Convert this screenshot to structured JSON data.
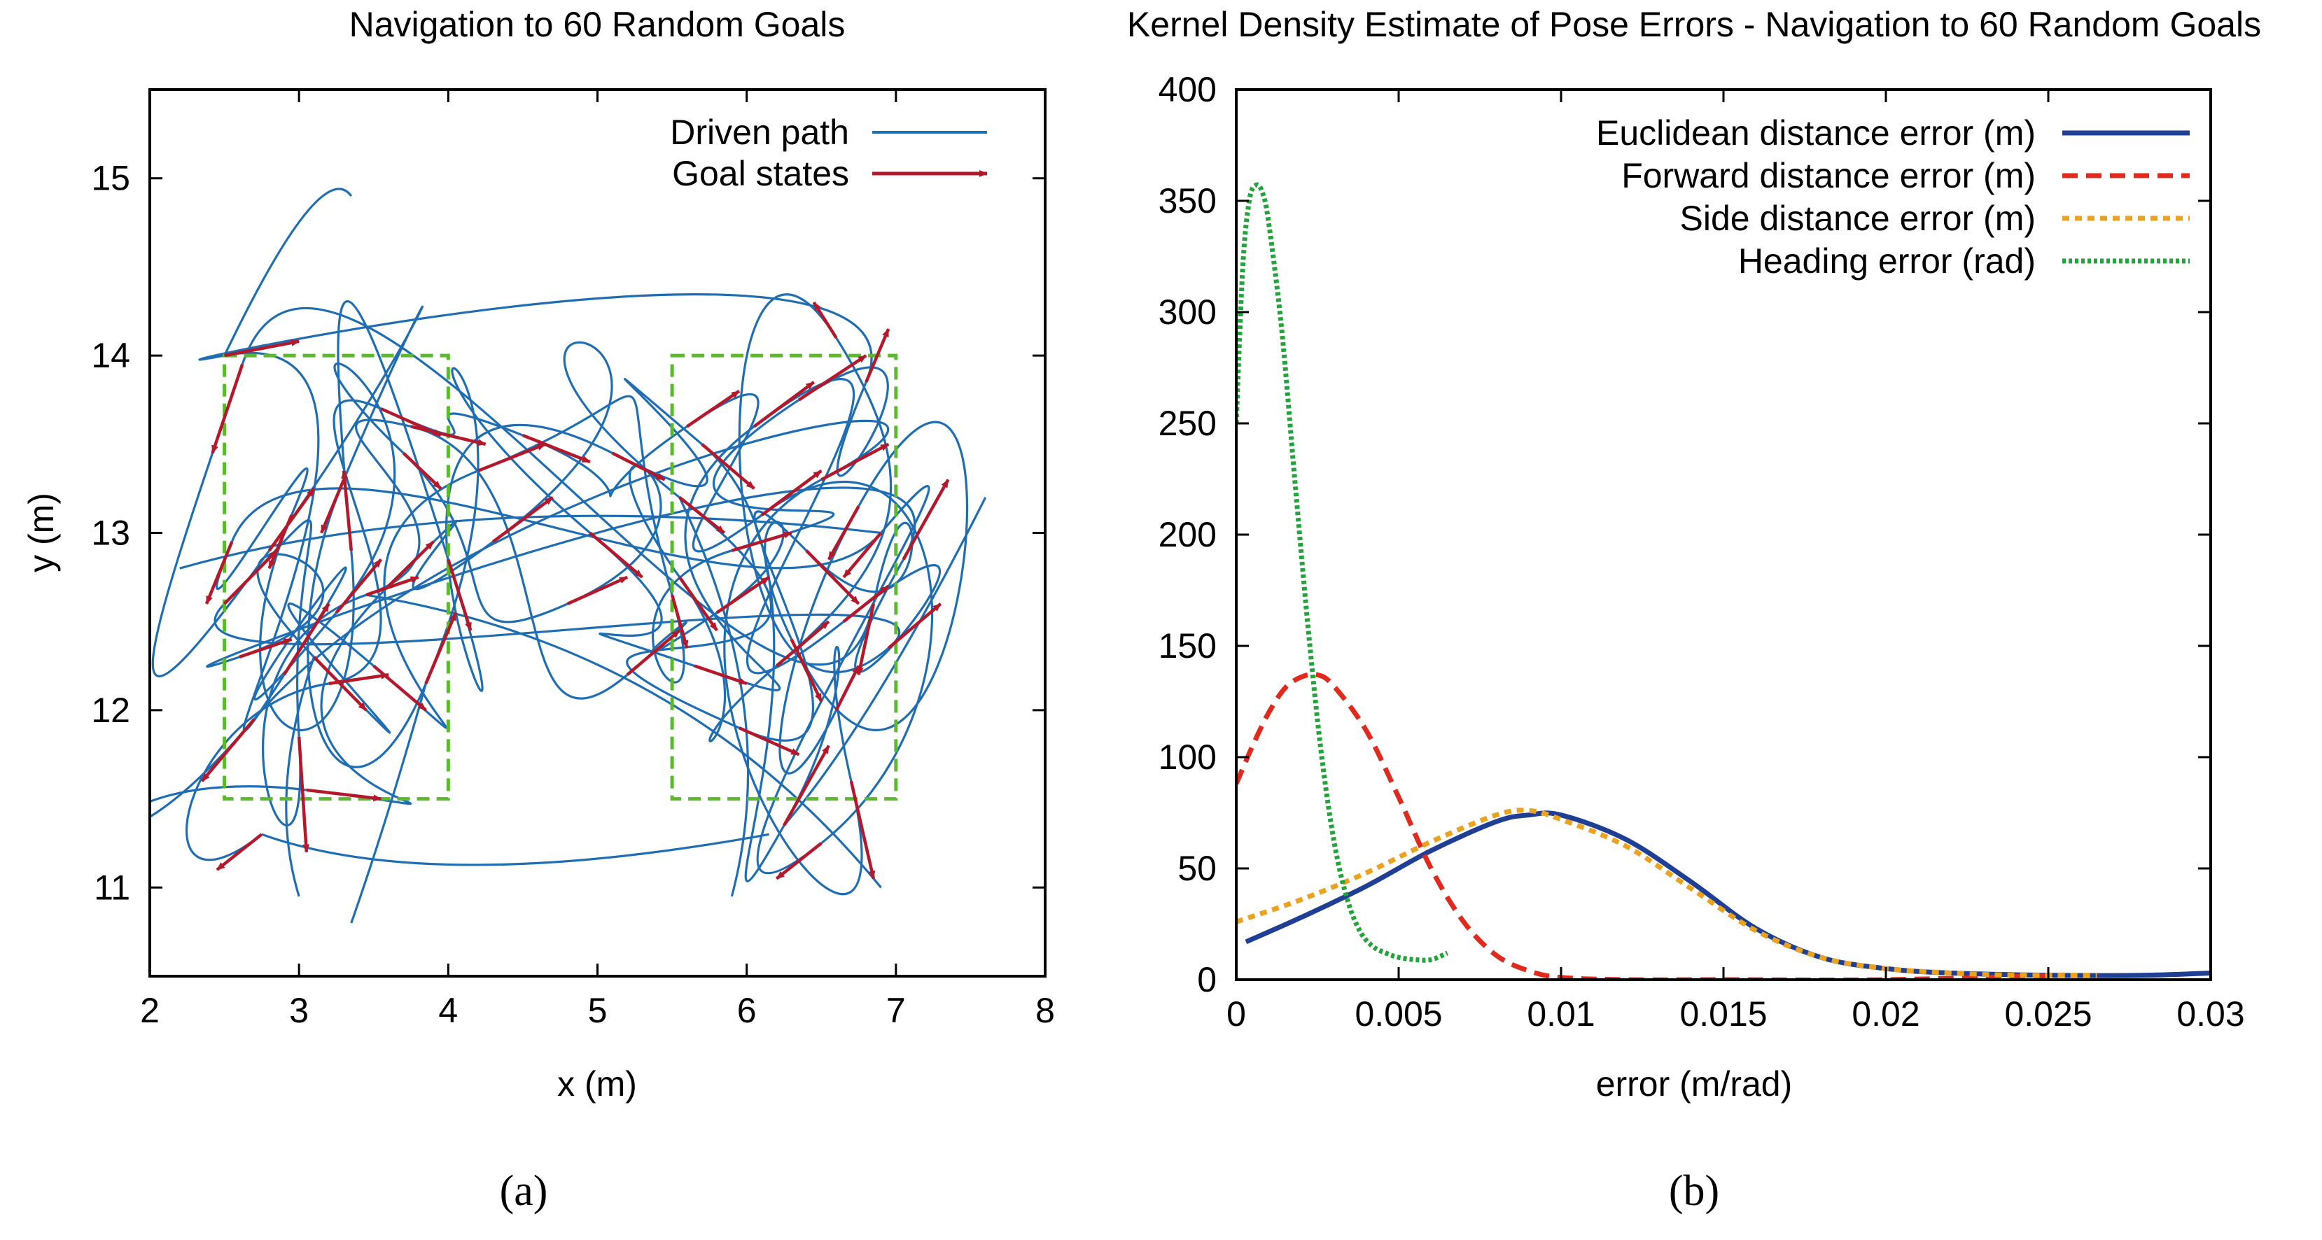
{
  "chart_data": [
    {
      "type": "line",
      "title": "Navigation to 60 Random Goals",
      "xlabel": "x (m)",
      "ylabel": "y (m)",
      "xlim": [
        2,
        8
      ],
      "ylim": [
        10.5,
        15.5
      ],
      "xticks": [
        2,
        3,
        4,
        5,
        6,
        7,
        8
      ],
      "yticks": [
        11,
        12,
        13,
        14,
        15
      ],
      "legend": [
        "Driven path",
        "Goal states"
      ],
      "legend_position": "top-right",
      "colors": {
        "path": "#1f6db3",
        "goal": "#b3182b",
        "box": "#5cb82e"
      },
      "goal_regions": [
        {
          "x0": 2.5,
          "x1": 4.0,
          "y0": 11.5,
          "y1": 14.0
        },
        {
          "x0": 5.5,
          "x1": 7.0,
          "y0": 11.5,
          "y1": 14.0
        }
      ],
      "goals": [
        [
          2.5,
          14.0,
          3.0,
          14.08
        ],
        [
          2.62,
          13.95,
          2.42,
          13.45
        ],
        [
          2.55,
          12.95,
          2.38,
          12.6
        ],
        [
          2.5,
          12.6,
          2.85,
          12.9
        ],
        [
          2.6,
          12.3,
          2.95,
          12.4
        ],
        [
          2.7,
          11.95,
          2.35,
          11.6
        ],
        [
          2.75,
          11.3,
          2.45,
          11.1
        ],
        [
          2.9,
          12.2,
          3.2,
          12.6
        ],
        [
          2.8,
          12.9,
          3.1,
          13.25
        ],
        [
          2.95,
          13.1,
          2.8,
          12.8
        ],
        [
          3.0,
          11.85,
          3.05,
          11.2
        ],
        [
          3.1,
          12.3,
          3.45,
          12.0
        ],
        [
          3.05,
          11.55,
          3.55,
          11.5
        ],
        [
          3.2,
          12.15,
          3.6,
          12.2
        ],
        [
          3.25,
          12.55,
          3.55,
          12.85
        ],
        [
          3.3,
          13.3,
          3.15,
          13.0
        ],
        [
          3.35,
          12.9,
          3.3,
          13.35
        ],
        [
          3.45,
          12.65,
          3.8,
          12.75
        ],
        [
          3.5,
          12.25,
          3.85,
          12.0
        ],
        [
          3.6,
          12.7,
          3.9,
          12.95
        ],
        [
          3.55,
          13.7,
          3.95,
          13.55
        ],
        [
          3.7,
          13.45,
          3.95,
          13.25
        ],
        [
          3.85,
          12.15,
          4.05,
          12.55
        ],
        [
          4.0,
          12.85,
          4.15,
          12.45
        ],
        [
          3.75,
          13.6,
          4.25,
          13.5
        ],
        [
          4.2,
          13.35,
          4.65,
          13.5
        ],
        [
          4.3,
          12.95,
          4.7,
          13.2
        ],
        [
          4.5,
          13.55,
          4.95,
          13.4
        ],
        [
          4.8,
          12.6,
          5.2,
          12.75
        ],
        [
          4.95,
          13.0,
          5.3,
          12.75
        ],
        [
          5.1,
          13.45,
          5.45,
          13.3
        ],
        [
          5.2,
          12.2,
          5.55,
          12.45
        ],
        [
          5.5,
          12.65,
          5.6,
          12.35
        ],
        [
          5.55,
          13.2,
          5.85,
          13.0
        ],
        [
          5.6,
          13.6,
          5.95,
          13.8
        ],
        [
          5.55,
          12.75,
          5.8,
          12.45
        ],
        [
          5.65,
          12.25,
          6.0,
          12.15
        ],
        [
          5.7,
          13.5,
          6.05,
          13.25
        ],
        [
          5.8,
          12.55,
          6.15,
          12.75
        ],
        [
          5.9,
          12.9,
          6.3,
          13.0
        ],
        [
          5.95,
          11.9,
          6.35,
          11.75
        ],
        [
          6.1,
          13.1,
          6.5,
          13.35
        ],
        [
          6.2,
          12.25,
          6.55,
          12.5
        ],
        [
          6.05,
          13.6,
          6.45,
          13.85
        ],
        [
          6.25,
          11.35,
          6.55,
          11.8
        ],
        [
          6.3,
          12.4,
          6.5,
          12.05
        ],
        [
          6.35,
          13.75,
          6.8,
          14.0
        ],
        [
          6.4,
          12.9,
          6.75,
          12.6
        ],
        [
          6.5,
          11.25,
          6.2,
          11.05
        ],
        [
          6.6,
          14.1,
          6.45,
          14.3
        ],
        [
          6.65,
          12.5,
          6.95,
          12.7
        ],
        [
          6.7,
          11.6,
          6.85,
          11.05
        ],
        [
          6.75,
          13.15,
          6.55,
          12.85
        ],
        [
          6.8,
          13.85,
          6.95,
          14.15
        ],
        [
          6.85,
          12.6,
          6.75,
          12.2
        ],
        [
          6.9,
          13.0,
          6.65,
          12.75
        ],
        [
          6.95,
          12.35,
          7.3,
          12.6
        ],
        [
          7.05,
          12.85,
          7.35,
          13.3
        ],
        [
          6.5,
          13.3,
          6.95,
          13.5
        ],
        [
          6.6,
          12.0,
          6.75,
          12.25
        ]
      ]
    },
    {
      "type": "line",
      "title": "Kernel Density Estimate of Pose Errors - Navigation to 60 Random Goals",
      "xlabel": "error (m/rad)",
      "ylabel": "",
      "xlim": [
        0,
        0.03
      ],
      "ylim": [
        0,
        400
      ],
      "xticks": [
        0,
        0.005,
        0.01,
        0.015,
        0.02,
        0.025,
        0.03
      ],
      "yticks": [
        0,
        50,
        100,
        150,
        200,
        250,
        300,
        350,
        400
      ],
      "legend_position": "top-right",
      "series": [
        {
          "name": "Euclidean distance error (m)",
          "color": "#1e3f94",
          "style": "solid",
          "x": [
            0.0003,
            0.002,
            0.004,
            0.006,
            0.008,
            0.009,
            0.01,
            0.012,
            0.014,
            0.016,
            0.018,
            0.02,
            0.022,
            0.025,
            0.028,
            0.03
          ],
          "y": [
            17,
            28,
            42,
            58,
            71,
            74,
            74,
            63,
            44,
            23,
            10,
            5,
            3,
            2,
            2,
            3
          ]
        },
        {
          "name": "Forward distance error (m)",
          "color": "#e02a1e",
          "style": "dashed",
          "x": [
            0.0,
            0.0005,
            0.001,
            0.0015,
            0.002,
            0.0025,
            0.003,
            0.004,
            0.005,
            0.006,
            0.007,
            0.008,
            0.009,
            0.01,
            0.012,
            0.015,
            0.02,
            0.0255
          ],
          "y": [
            88,
            105,
            120,
            131,
            136,
            137,
            132,
            112,
            82,
            50,
            26,
            11,
            4,
            1,
            0,
            0,
            0,
            2
          ]
        },
        {
          "name": "Side distance error (m)",
          "color": "#eba21e",
          "style": "dotted",
          "x": [
            0.0,
            0.002,
            0.004,
            0.006,
            0.008,
            0.009,
            0.01,
            0.012,
            0.014,
            0.016,
            0.018,
            0.02,
            0.022,
            0.024,
            0.0265
          ],
          "y": [
            26,
            36,
            48,
            62,
            74,
            76,
            72,
            60,
            41,
            22,
            10,
            5,
            3,
            2,
            2
          ]
        },
        {
          "name": "Heading error (rad)",
          "color": "#23a33b",
          "style": "dotted",
          "x": [
            0.0,
            0.0002,
            0.0004,
            0.0006,
            0.0008,
            0.001,
            0.0014,
            0.0018,
            0.0022,
            0.0026,
            0.003,
            0.0034,
            0.0038,
            0.0042,
            0.0046,
            0.005,
            0.0055,
            0.006,
            0.0065
          ],
          "y": [
            250,
            320,
            350,
            357,
            354,
            340,
            292,
            225,
            160,
            104,
            63,
            37,
            22,
            15,
            12,
            10,
            9,
            9,
            12
          ]
        }
      ]
    }
  ],
  "captions": {
    "a": "(a)",
    "b": "(b)"
  }
}
